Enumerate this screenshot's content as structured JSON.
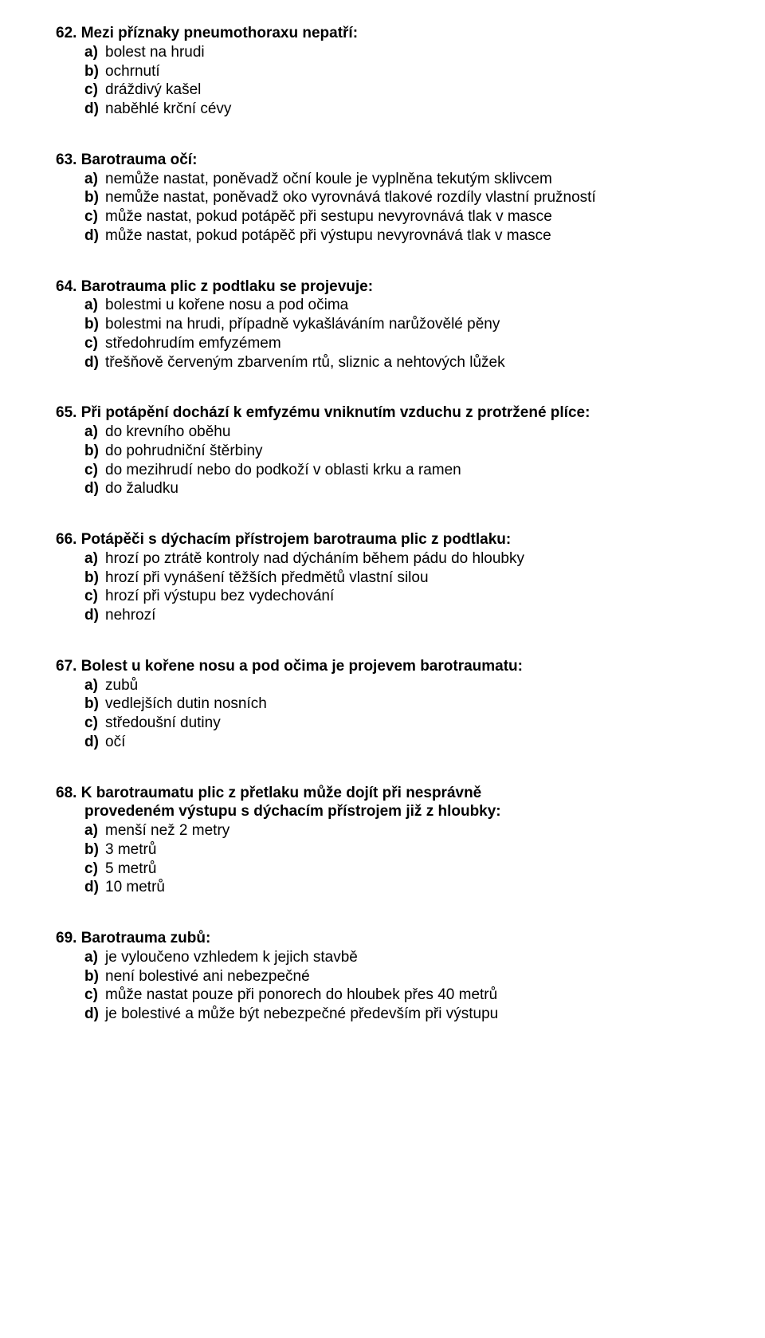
{
  "text_color": "#000000",
  "background_color": "#ffffff",
  "font_family": "Arial",
  "title_fontsize": 19,
  "option_fontsize": 19,
  "questions": [
    {
      "number": "62.",
      "title": "Mezi příznaky pneumothoraxu nepatří:",
      "options": [
        {
          "l": "a)",
          "t": "bolest na hrudi"
        },
        {
          "l": "b)",
          "t": "ochrnutí"
        },
        {
          "l": "c)",
          "t": "dráždivý kašel"
        },
        {
          "l": "d)",
          "t": "naběhlé krční cévy"
        }
      ]
    },
    {
      "number": "63.",
      "title": "Barotrauma očí:",
      "options": [
        {
          "l": "a)",
          "t": "nemůže nastat, poněvadž oční koule je vyplněna tekutým sklivcem"
        },
        {
          "l": "b)",
          "t": "nemůže nastat, poněvadž oko vyrovnává tlakové rozdíly vlastní pružností"
        },
        {
          "l": "c)",
          "t": "může nastat, pokud potápěč při sestupu nevyrovnává tlak v masce"
        },
        {
          "l": "d)",
          "t": "může nastat, pokud potápěč při výstupu nevyrovnává tlak v masce"
        }
      ]
    },
    {
      "number": "64.",
      "title": "Barotrauma plic z podtlaku se projevuje:",
      "options": [
        {
          "l": "a)",
          "t": "bolestmi u kořene nosu a pod očima"
        },
        {
          "l": "b)",
          "t": "bolestmi na hrudi, případně vykašláváním narůžovělé pěny"
        },
        {
          "l": "c)",
          "t": "středohrudím emfyzémem"
        },
        {
          "l": "d)",
          "t": "třešňově červeným zbarvením rtů, sliznic a nehtových lůžek"
        }
      ]
    },
    {
      "number": "65.",
      "title": "Při potápění dochází k emfyzému vniknutím vzduchu z protržené plíce:",
      "options": [
        {
          "l": "a)",
          "t": "do krevního oběhu"
        },
        {
          "l": "b)",
          "t": "do pohrudniční štěrbiny"
        },
        {
          "l": "c)",
          "t": "do mezihrudí nebo do podkoží v oblasti krku a ramen"
        },
        {
          "l": "d)",
          "t": "do žaludku"
        }
      ]
    },
    {
      "number": "66.",
      "title": "Potápěči s dýchacím přístrojem barotrauma plic z podtlaku:",
      "options": [
        {
          "l": "a)",
          "t": "hrozí po ztrátě kontroly nad dýcháním během pádu do hloubky"
        },
        {
          "l": "b)",
          "t": "hrozí při vynášení těžších předmětů vlastní silou"
        },
        {
          "l": "c)",
          "t": "hrozí při výstupu bez vydechování"
        },
        {
          "l": "d)",
          "t": "nehrozí"
        }
      ]
    },
    {
      "number": "67.",
      "title": "Bolest u kořene nosu a pod očima je projevem barotraumatu:",
      "options": [
        {
          "l": "a)",
          "t": "zubů"
        },
        {
          "l": "b)",
          "t": "vedlejších dutin nosních"
        },
        {
          "l": "c)",
          "t": "středoušní dutiny"
        },
        {
          "l": "d)",
          "t": "očí"
        }
      ]
    },
    {
      "number": "68.",
      "title": "K barotraumatu plic z přetlaku může dojít při nesprávně",
      "title_cont": "provedeném výstupu s dýchacím přístrojem již z hloubky:",
      "options": [
        {
          "l": "a)",
          "t": "menší než 2 metry"
        },
        {
          "l": "b)",
          "t": "3 metrů"
        },
        {
          "l": "c)",
          "t": "5 metrů"
        },
        {
          "l": "d)",
          "t": "10 metrů"
        }
      ]
    },
    {
      "number": "69.",
      "title": "Barotrauma zubů:",
      "options": [
        {
          "l": "a)",
          "t": "je vyloučeno vzhledem k jejich stavbě"
        },
        {
          "l": "b)",
          "t": "není bolestivé ani nebezpečné"
        },
        {
          "l": "c)",
          "t": "může nastat pouze při ponorech do hloubek přes 40 metrů"
        },
        {
          "l": "d)",
          "t": "je bolestivé a může být nebezpečné především při výstupu"
        }
      ]
    }
  ]
}
